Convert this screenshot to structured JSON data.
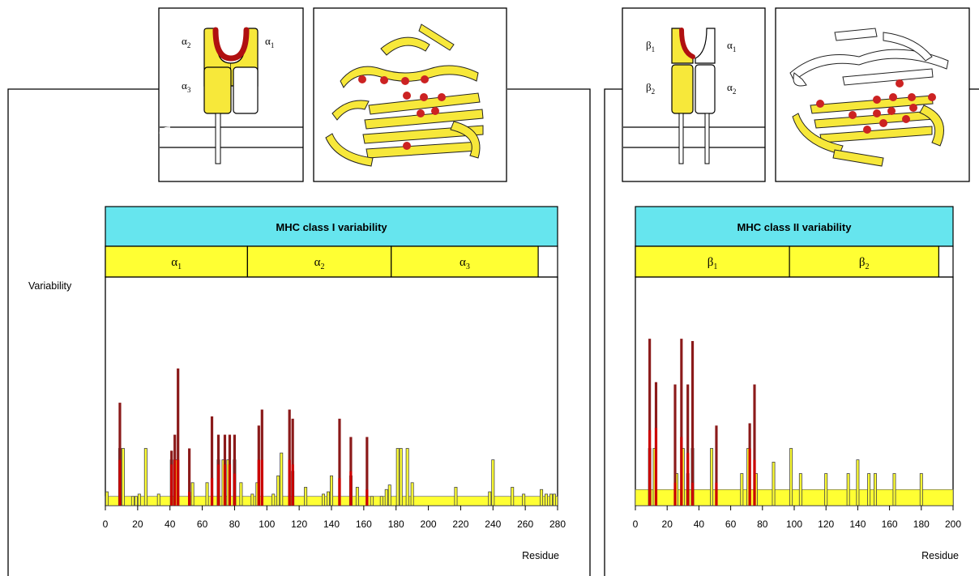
{
  "colors": {
    "banner": "#66e5ee",
    "domain": "#ffff33",
    "yellow_bar": "#ffff33",
    "red_bar": "#cc0000",
    "dark_red_bar": "#8b1a1a",
    "schematic_yellow": "#f7e83a",
    "red_site": "#cc2222"
  },
  "y_axis_label": "Variability",
  "panels": [
    {
      "id": "class1",
      "banner_title": "MHC  class  I  variability",
      "domains": [
        {
          "label": "α",
          "sub": "1",
          "start": 0,
          "end": 88
        },
        {
          "label": "α",
          "sub": "2",
          "start": 88,
          "end": 177
        },
        {
          "label": "α",
          "sub": "3",
          "start": 177,
          "end": 268
        }
      ],
      "schematic_labels": [
        {
          "label": "α",
          "sub": "2"
        },
        {
          "label": "α",
          "sub": "1"
        },
        {
          "label": "α",
          "sub": "3"
        }
      ]
    },
    {
      "id": "class2",
      "banner_title": "MHC  class  II  variability",
      "domains": [
        {
          "label": "β",
          "sub": "1",
          "start": 0,
          "end": 97
        },
        {
          "label": "β",
          "sub": "2",
          "start": 97,
          "end": 191
        }
      ],
      "schematic_labels": [
        {
          "label": "β",
          "sub": "1"
        },
        {
          "label": "α",
          "sub": "1"
        },
        {
          "label": "β",
          "sub": "2"
        },
        {
          "label": "α",
          "sub": "2"
        }
      ]
    }
  ],
  "chart_data": [
    {
      "type": "bar",
      "title": "MHC class I variability",
      "xlabel": "Residue",
      "ylabel": "Variability",
      "xlim": [
        0,
        280
      ],
      "ylim": [
        0,
        1
      ],
      "ticks": [
        0,
        20,
        40,
        60,
        80,
        100,
        120,
        140,
        160,
        180,
        200,
        220,
        240,
        260,
        280
      ],
      "tick_labels": [
        "0",
        "20",
        "40",
        "60",
        "80",
        "100",
        "120",
        "140",
        "160",
        "180",
        "200",
        "220",
        "240",
        "260",
        "280"
      ],
      "baseline": 0.04,
      "series": [
        {
          "kind": "yellow",
          "values": [
            [
              1,
              0.06
            ],
            [
              9,
              0.25
            ],
            [
              11,
              0.25
            ],
            [
              17,
              0.04
            ],
            [
              19,
              0.04
            ],
            [
              21,
              0.05
            ],
            [
              25,
              0.25
            ],
            [
              33,
              0.05
            ],
            [
              41,
              0.2
            ],
            [
              44,
              0.2
            ],
            [
              54,
              0.1
            ],
            [
              63,
              0.1
            ],
            [
              70,
              0.2
            ],
            [
              73,
              0.2
            ],
            [
              76,
              0.2
            ],
            [
              80,
              0.2
            ],
            [
              84,
              0.1
            ],
            [
              91,
              0.05
            ],
            [
              94,
              0.1
            ],
            [
              104,
              0.05
            ],
            [
              107,
              0.13
            ],
            [
              109,
              0.23
            ],
            [
              116,
              0.15
            ],
            [
              124,
              0.08
            ],
            [
              135,
              0.05
            ],
            [
              138,
              0.06
            ],
            [
              140,
              0.13
            ],
            [
              152,
              0.13
            ],
            [
              156,
              0.08
            ],
            [
              165,
              0.04
            ],
            [
              171,
              0.04
            ],
            [
              174,
              0.07
            ],
            [
              176,
              0.09
            ],
            [
              181,
              0.25
            ],
            [
              183,
              0.25
            ],
            [
              187,
              0.25
            ],
            [
              190,
              0.1
            ],
            [
              217,
              0.08
            ],
            [
              238,
              0.06
            ],
            [
              240,
              0.2
            ],
            [
              252,
              0.08
            ],
            [
              259,
              0.05
            ],
            [
              270,
              0.07
            ],
            [
              273,
              0.05
            ],
            [
              276,
              0.05
            ],
            [
              278,
              0.05
            ]
          ]
        },
        {
          "kind": "dark_red",
          "values": [
            [
              9,
              0.45
            ],
            [
              41,
              0.24
            ],
            [
              43,
              0.31
            ],
            [
              45,
              0.6
            ],
            [
              52,
              0.25
            ],
            [
              66,
              0.39
            ],
            [
              70,
              0.31
            ],
            [
              74,
              0.31
            ],
            [
              77,
              0.31
            ],
            [
              80,
              0.31
            ],
            [
              95,
              0.35
            ],
            [
              97,
              0.42
            ],
            [
              114,
              0.42
            ],
            [
              116,
              0.38
            ],
            [
              145,
              0.38
            ],
            [
              152,
              0.3
            ],
            [
              162,
              0.3
            ]
          ]
        },
        {
          "kind": "red",
          "values": [
            [
              9,
              0.2
            ],
            [
              41,
              0.18
            ],
            [
              43,
              0.2
            ],
            [
              45,
              0.2
            ],
            [
              52,
              0.06
            ],
            [
              66,
              0.12
            ],
            [
              70,
              0.18
            ],
            [
              74,
              0.18
            ],
            [
              77,
              0.18
            ],
            [
              80,
              0.14
            ],
            [
              95,
              0.2
            ],
            [
              97,
              0.2
            ],
            [
              114,
              0.2
            ],
            [
              116,
              0.18
            ],
            [
              145,
              0.12
            ],
            [
              152,
              0.15
            ],
            [
              162,
              0.07
            ]
          ]
        }
      ]
    },
    {
      "type": "bar",
      "title": "MHC class II variability",
      "xlabel": "Residue",
      "ylabel": "Variability",
      "xlim": [
        0,
        200
      ],
      "ylim": [
        0,
        1
      ],
      "ticks": [
        0,
        20,
        40,
        60,
        80,
        100,
        120,
        140,
        160,
        180,
        200
      ],
      "tick_labels": [
        "0",
        "20",
        "40",
        "60",
        "80",
        "100",
        "120",
        "140",
        "160",
        "180",
        "200"
      ],
      "baseline": 0.07,
      "series": [
        {
          "kind": "yellow",
          "values": [
            [
              9,
              0.25
            ],
            [
              12,
              0.25
            ],
            [
              26,
              0.14
            ],
            [
              30,
              0.25
            ],
            [
              33,
              0.14
            ],
            [
              36,
              0.25
            ],
            [
              48,
              0.25
            ],
            [
              67,
              0.14
            ],
            [
              71,
              0.25
            ],
            [
              76,
              0.14
            ],
            [
              87,
              0.19
            ],
            [
              98,
              0.25
            ],
            [
              104,
              0.14
            ],
            [
              120,
              0.14
            ],
            [
              134,
              0.14
            ],
            [
              140,
              0.2
            ],
            [
              147,
              0.14
            ],
            [
              151,
              0.14
            ],
            [
              163,
              0.14
            ],
            [
              180,
              0.14
            ]
          ]
        },
        {
          "kind": "dark_red",
          "values": [
            [
              9,
              0.73
            ],
            [
              13,
              0.54
            ],
            [
              25,
              0.53
            ],
            [
              29,
              0.73
            ],
            [
              33,
              0.53
            ],
            [
              36,
              0.72
            ],
            [
              51,
              0.35
            ],
            [
              72,
              0.36
            ],
            [
              75,
              0.53
            ]
          ]
        },
        {
          "kind": "red",
          "values": [
            [
              9,
              0.33
            ],
            [
              13,
              0.34
            ],
            [
              25,
              0.1
            ],
            [
              29,
              0.3
            ],
            [
              33,
              0.23
            ],
            [
              36,
              0.1
            ],
            [
              51,
              0.1
            ],
            [
              72,
              0.25
            ],
            [
              75,
              0.2
            ]
          ]
        }
      ]
    }
  ]
}
